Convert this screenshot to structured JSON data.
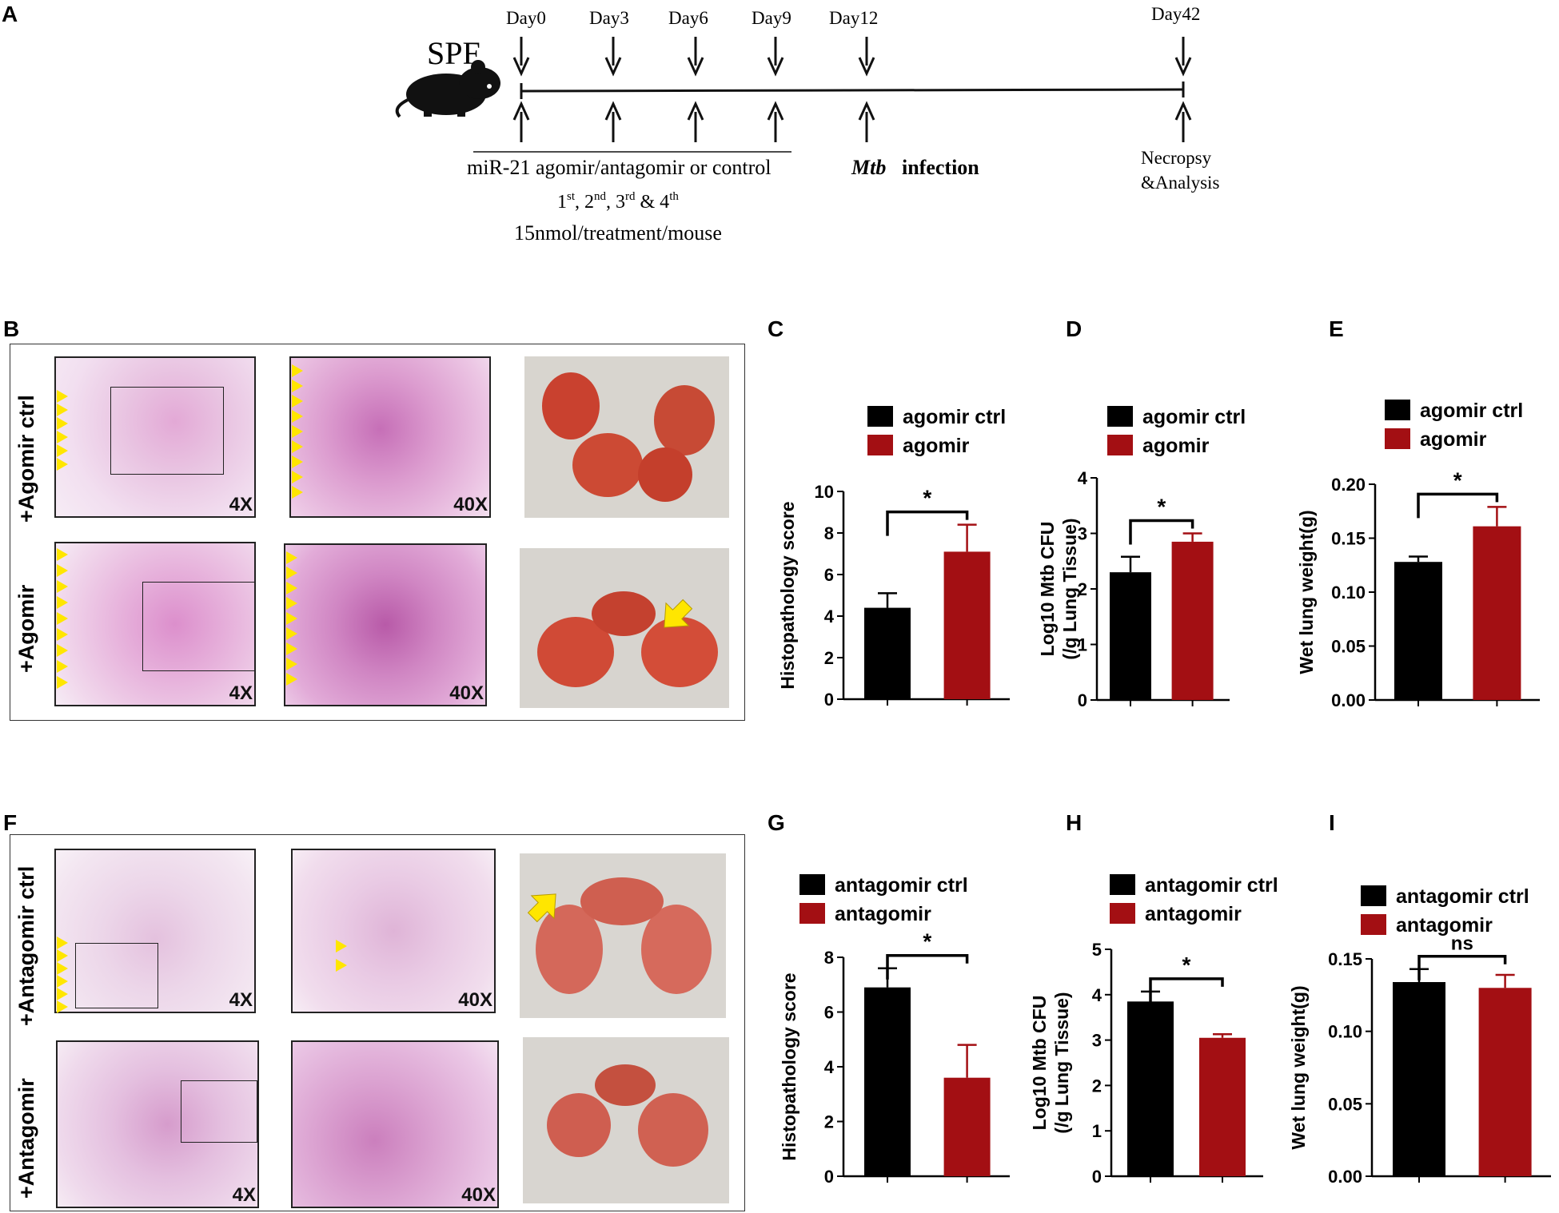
{
  "panels": {
    "A": "A",
    "B": "B",
    "C": "C",
    "D": "D",
    "E": "E",
    "F": "F",
    "G": "G",
    "H": "H",
    "I": "I"
  },
  "timeline": {
    "spf": "SPF",
    "days": [
      "Day0",
      "Day3",
      "Day6",
      "Day9",
      "Day12",
      "Day42"
    ],
    "treatment": "miR-21 agomir/antagomir or control",
    "mtb_italic": "Mtb",
    "infection": "infection",
    "schedule_parts": [
      "1",
      "st",
      ", 2",
      "nd",
      ", 3",
      "rd",
      " & 4",
      "th"
    ],
    "dose": "15nmol/treatment/mouse",
    "necropsy_1": "Necropsy",
    "necropsy_2": "&Analysis"
  },
  "histology": {
    "row_agomir_ctrl": "+Agomir ctrl",
    "row_agomir": "+Agomir",
    "row_antagomir_ctrl": "+Antagomir ctrl",
    "row_antagomir": "+Antagomir",
    "mag_low": "4X",
    "mag_high": "40X"
  },
  "colors": {
    "ctrl": "#000000",
    "treat": "#a30f13",
    "marker": "#ffe600"
  },
  "chart_data": [
    {
      "id": "C",
      "type": "bar",
      "categories": [
        "agomir ctrl",
        "agomir"
      ],
      "values": [
        4.4,
        7.1
      ],
      "errors": [
        0.7,
        1.3
      ],
      "ylabel": "Histopathology score",
      "ylim": [
        0,
        10
      ],
      "yticks": [
        "0",
        "2",
        "4",
        "6",
        "8",
        "10"
      ],
      "significance": "*",
      "legend": [
        "agomir ctrl",
        "agomir"
      ],
      "legend_position": "top"
    },
    {
      "id": "D",
      "type": "bar",
      "categories": [
        "agomir ctrl",
        "agomir"
      ],
      "values": [
        2.3,
        2.85
      ],
      "errors": [
        0.28,
        0.15
      ],
      "ylabel": "Log10 Mtb CFU",
      "ylabel2": "(/g Lung Tissue)",
      "ylim": [
        0,
        4
      ],
      "yticks": [
        "0",
        "1",
        "2",
        "3",
        "4"
      ],
      "significance": "*",
      "legend": [
        "agomir ctrl",
        "agomir"
      ],
      "legend_position": "top"
    },
    {
      "id": "E",
      "type": "bar",
      "categories": [
        "agomir ctrl",
        "agomir"
      ],
      "values": [
        0.128,
        0.161
      ],
      "errors": [
        0.005,
        0.018
      ],
      "ylabel": "Wet lung weight(g)",
      "ylim": [
        0,
        0.2
      ],
      "yticks": [
        "0.00",
        "0.05",
        "0.10",
        "0.15",
        "0.20"
      ],
      "significance": "*",
      "legend": [
        "agomir ctrl",
        "agomir"
      ],
      "legend_position": "top"
    },
    {
      "id": "G",
      "type": "bar",
      "categories": [
        "antagomir ctrl",
        "antagomir"
      ],
      "values": [
        6.9,
        3.6
      ],
      "errors": [
        0.7,
        1.2
      ],
      "ylabel": "Histopathology score",
      "ylim": [
        0,
        8
      ],
      "yticks": [
        "0",
        "2",
        "4",
        "6",
        "8"
      ],
      "significance": "*",
      "legend": [
        "antagomir ctrl",
        "antagomir"
      ],
      "legend_position": "top"
    },
    {
      "id": "H",
      "type": "bar",
      "categories": [
        "antagomir ctrl",
        "antagomir"
      ],
      "values": [
        3.85,
        3.05
      ],
      "errors": [
        0.22,
        0.08
      ],
      "ylabel": "Log10 Mtb CFU",
      "ylabel2": "(/g Lung Tissue)",
      "ylim": [
        0,
        5
      ],
      "yticks": [
        "0",
        "1",
        "2",
        "3",
        "4",
        "5"
      ],
      "significance": "*",
      "legend": [
        "antagomir ctrl",
        "antagomir"
      ],
      "legend_position": "top"
    },
    {
      "id": "I",
      "type": "bar",
      "categories": [
        "antagomir ctrl",
        "antagomir"
      ],
      "values": [
        0.134,
        0.13
      ],
      "errors": [
        0.009,
        0.009
      ],
      "ylabel": "Wet lung weight(g)",
      "ylim": [
        0,
        0.15
      ],
      "yticks": [
        "0.00",
        "0.05",
        "0.10",
        "0.15"
      ],
      "significance": "ns",
      "legend": [
        "antagomir ctrl",
        "antagomir"
      ],
      "legend_position": "top"
    }
  ]
}
